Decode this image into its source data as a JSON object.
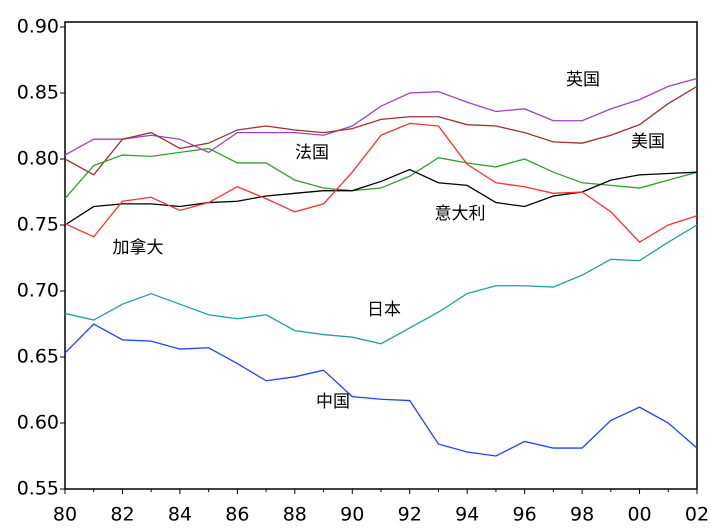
{
  "chart_data": {
    "type": "line",
    "categories": [
      "80",
      null,
      "82",
      null,
      "84",
      null,
      "86",
      null,
      "88",
      null,
      "90",
      null,
      "92",
      null,
      "94",
      null,
      "96",
      null,
      "98",
      null,
      "00",
      null,
      "02"
    ],
    "ylim": [
      0.55,
      0.9
    ],
    "yticks": [
      0.55,
      {
        "value": 0.6,
        "label": "0.60"
      },
      0.65,
      {
        "value": 0.7,
        "label": "0.70"
      },
      0.75,
      {
        "value": 0.8,
        "label": "0.80"
      },
      0.85,
      {
        "value": 0.9,
        "label": "0.90"
      }
    ],
    "series": [
      {
        "name": "英国",
        "color": "#a040d0",
        "values": [
          0.803,
          0.815,
          0.815,
          0.818,
          0.815,
          0.805,
          0.82,
          0.82,
          0.82,
          0.818,
          0.825,
          0.84,
          0.85,
          0.851,
          0.843,
          0.836,
          0.838,
          0.829,
          0.829,
          0.838,
          0.845,
          0.855,
          0.861
        ]
      },
      {
        "name": "美国",
        "color": "#a03030",
        "values": [
          0.8,
          0.788,
          0.815,
          0.82,
          0.808,
          0.812,
          0.822,
          0.825,
          0.822,
          0.82,
          0.823,
          0.83,
          0.832,
          0.832,
          0.826,
          0.825,
          0.82,
          0.813,
          0.812,
          0.818,
          0.826,
          0.842,
          0.855
        ]
      },
      {
        "name": "法国",
        "color": "#30a030",
        "values": [
          0.77,
          0.795,
          0.803,
          0.802,
          0.805,
          0.808,
          0.797,
          0.797,
          0.784,
          0.778,
          0.776,
          0.778,
          0.787,
          0.801,
          0.797,
          0.794,
          0.8,
          0.79,
          0.782,
          0.78,
          0.778,
          0.784,
          0.79
        ]
      },
      {
        "name": "意大利",
        "color": "#000000",
        "values": [
          0.75,
          0.764,
          0.766,
          0.766,
          0.764,
          0.767,
          0.768,
          0.772,
          0.774,
          0.776,
          0.776,
          0.783,
          0.792,
          0.782,
          0.78,
          0.767,
          0.764,
          0.772,
          0.775,
          0.784,
          0.788,
          0.789,
          0.79
        ]
      },
      {
        "name": "加拿大",
        "color": "#ff3030",
        "values": [
          0.751,
          0.741,
          0.768,
          0.771,
          0.761,
          0.767,
          0.779,
          0.77,
          0.76,
          0.766,
          0.79,
          0.818,
          0.827,
          0.825,
          0.796,
          0.782,
          0.779,
          0.774,
          0.775,
          0.76,
          0.737,
          0.75,
          0.757
        ]
      },
      {
        "name": "日本",
        "color": "#20a0a0",
        "values": [
          0.683,
          0.678,
          0.69,
          0.698,
          0.69,
          0.682,
          0.679,
          0.682,
          0.67,
          0.667,
          0.665,
          0.66,
          0.672,
          0.684,
          0.698,
          0.704,
          0.704,
          0.703,
          0.712,
          0.724,
          0.723,
          0.737,
          0.75
        ]
      },
      {
        "name": "中国",
        "color": "#2040ff",
        "values": [
          0.653,
          0.675,
          0.663,
          0.662,
          0.656,
          0.657,
          0.645,
          0.632,
          0.635,
          0.64,
          0.62,
          0.618,
          0.617,
          0.584,
          0.578,
          0.575,
          0.586,
          0.581,
          0.581,
          0.602,
          0.612,
          0.6,
          0.581
        ]
      }
    ]
  }
}
